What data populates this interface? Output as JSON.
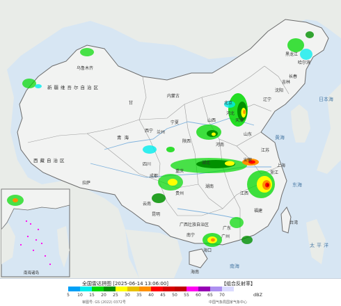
{
  "map": {
    "colors": {
      "sea": "#d7e6f3",
      "land_china": "#f2f3f2",
      "land_foreign": "#e9ece8",
      "border": "#6b6b6b",
      "province_line": "#9c9c9c",
      "river": "#7fb2dd"
    },
    "labels": {
      "xinjiang": "新疆维吾尔自治区",
      "tibet": "西藏自治区",
      "qinghai": "青海",
      "gansu": "甘",
      "neimenggu": "内蒙古",
      "heilongjiang": "黑龙江",
      "jilin": "吉林",
      "liaoning": "辽宁",
      "hebei": "河北",
      "shanxi": "山西",
      "shaanxi": "陕西",
      "ningxia": "宁夏",
      "henan": "河南",
      "shandong": "山东",
      "jiangsu": "江苏",
      "anhui": "安徽",
      "hubei": "湖北",
      "sichuan": "四川",
      "chongqing": "重庆",
      "guizhou": "贵州",
      "yunnan": "云南",
      "hunan": "湖南",
      "jiangxi": "江西",
      "zhejiang": "浙江",
      "fujian": "福建",
      "guangxi": "广西壮族自治区",
      "guangdong": "广东",
      "hainan": "海南",
      "taiwan": "台湾",
      "beijing": "北京",
      "tianjin": "天津",
      "shanghai": "上海",
      "urumqi": "乌鲁木齐",
      "lhasa": "拉萨",
      "xining": "西宁",
      "lanzhou": "兰州",
      "chengdu": "成都",
      "kunming": "昆明",
      "nanning": "南宁",
      "guangzhou": "广州",
      "haikou": "海口",
      "harbin": "哈尔滨",
      "changchun": "长春",
      "shenyang": "沈阳",
      "yellow_sea": "黄海",
      "east_china_sea": "东海",
      "south_china_sea": "南海",
      "pacific": "太平洋",
      "sea_of_japan": "日本海",
      "inset_scs": "南海诸岛"
    }
  },
  "legend": {
    "title": "全国雷达拼图 [2025-06-14 13:06:00]",
    "product_type": "【组合反射率】",
    "ticks": [
      "5",
      "10",
      "15",
      "20",
      "25",
      "30",
      "35",
      "40",
      "45",
      "50",
      "55",
      "60",
      "65",
      "70"
    ],
    "colors": [
      "#01a0f6",
      "#00ecec",
      "#00d800",
      "#019000",
      "#ffff00",
      "#e7c000",
      "#ff9000",
      "#ff0000",
      "#d60000",
      "#c00000",
      "#ff00f0",
      "#9600b4",
      "#ad90f0",
      "#dcdcff"
    ],
    "unit": "dBZ",
    "approval": "审图号: GS (2022) 0372号",
    "source": "中国气象局国家气象中心"
  }
}
